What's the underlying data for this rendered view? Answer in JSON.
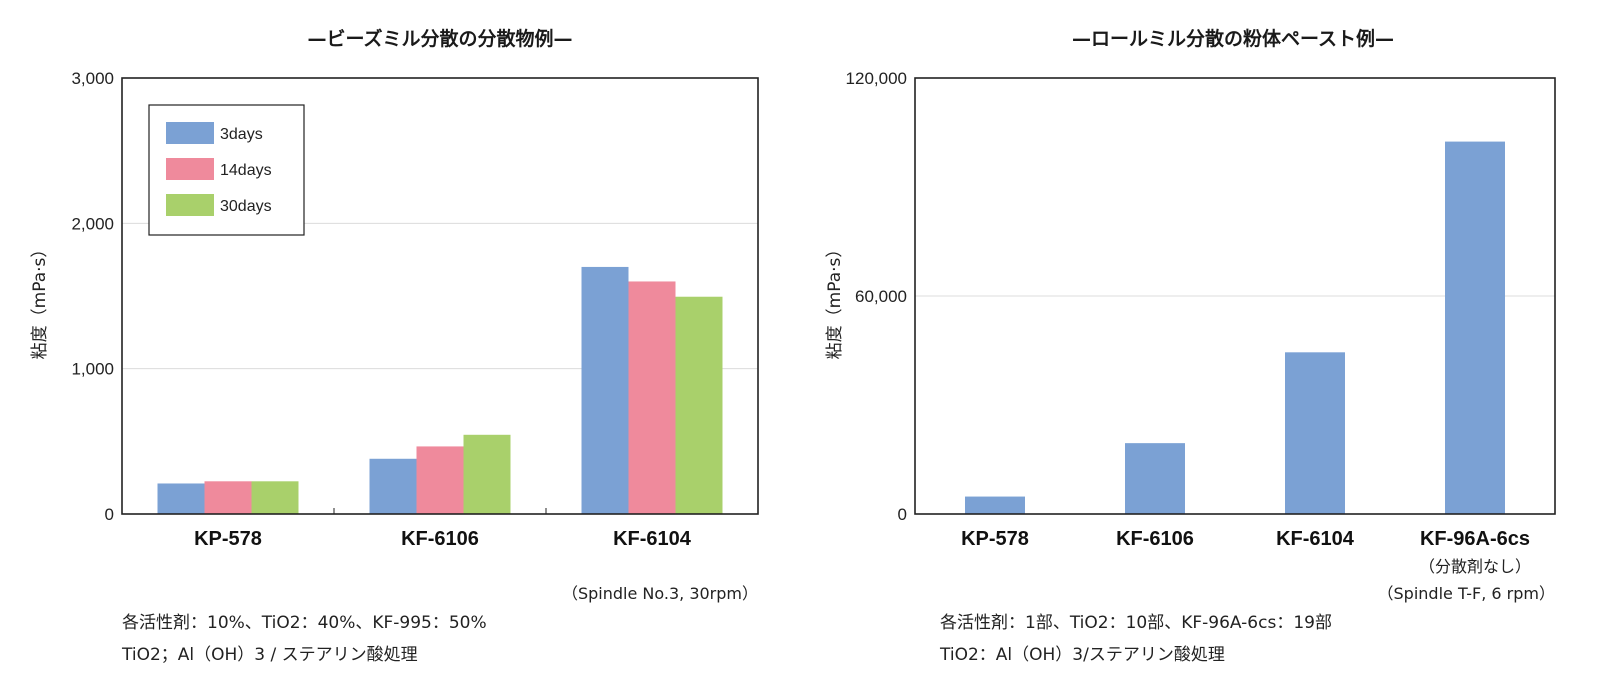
{
  "chart_data": [
    {
      "type": "bar",
      "title": "—ビーズミル分散の分散物例—",
      "ylabel": "粘度（mPa·s）",
      "ylim": [
        0,
        3000
      ],
      "yticks": [
        "0",
        "1,000",
        "2,000",
        "3,000"
      ],
      "ytick_values": [
        0,
        1000,
        2000,
        3000
      ],
      "grid": true,
      "legend_position": "top-left",
      "categories": [
        "KP-578",
        "KF-6106",
        "KF-6104"
      ],
      "series": [
        {
          "name": "3days",
          "color": "#7ba1d4",
          "values": [
            210,
            380,
            1700
          ]
        },
        {
          "name": "14days",
          "color": "#ef8a9c",
          "values": [
            225,
            465,
            1600
          ]
        },
        {
          "name": "30days",
          "color": "#a9d06b",
          "values": [
            225,
            545,
            1495
          ]
        }
      ],
      "condition": "（Spindle No.3, 30rpm）",
      "notes": [
        "各活性剤：10%、TiO2：40%、KF-995：50%",
        "TiO2；Al（OH）3 / ステアリン酸処理"
      ]
    },
    {
      "type": "bar",
      "title": "—ロールミル分散の粉体ペースト例—",
      "ylabel": "粘度（mPa·s）",
      "ylim": [
        0,
        120000
      ],
      "yticks": [
        "0",
        "60,000",
        "120,000"
      ],
      "ytick_values": [
        0,
        60000,
        120000
      ],
      "grid": true,
      "categories": [
        "KP-578",
        "KF-6106",
        "KF-6104",
        "KF-96A-6cs"
      ],
      "category_sublabels": [
        "",
        "",
        "",
        "（分散剤なし）"
      ],
      "series": [
        {
          "color": "#7ba1d4",
          "values": [
            4800,
            19500,
            44500,
            102500
          ]
        }
      ],
      "condition": "（Spindle T-F, 6 rpm）",
      "notes": [
        "各活性剤：1部、TiO2：10部、KF-96A-6cs：19部",
        "TiO2：Al（OH）3/ステアリン酸処理"
      ]
    }
  ]
}
